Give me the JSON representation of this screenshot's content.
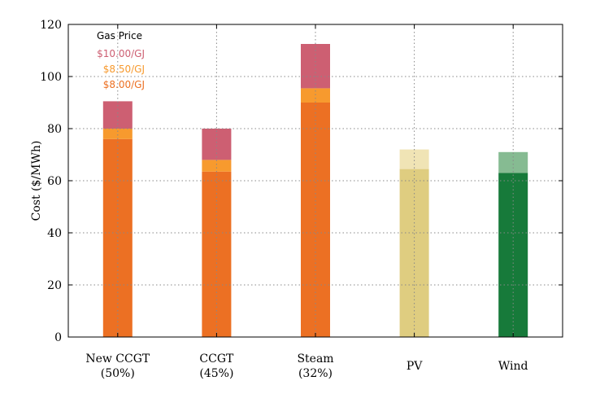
{
  "chart_data": {
    "type": "bar",
    "stacked": true,
    "ylabel": "Cost ($/MWh)",
    "ylim": [
      0,
      120
    ],
    "yticks": [
      0,
      20,
      40,
      60,
      80,
      100,
      120
    ],
    "grid": true,
    "categories": [
      {
        "line1": "New CCGT",
        "line2": "(50%)"
      },
      {
        "line1": "CCGT",
        "line2": "(45%)"
      },
      {
        "line1": "Steam",
        "line2": "(32%)"
      },
      {
        "line1": "PV",
        "line2": ""
      },
      {
        "line1": "Wind",
        "line2": ""
      }
    ],
    "bars": [
      {
        "segments": [
          {
            "value": 76,
            "color": "#ec7023"
          },
          {
            "value": 4,
            "color": "#f79a2e"
          },
          {
            "value": 10.5,
            "color": "#cd5f72"
          }
        ]
      },
      {
        "segments": [
          {
            "value": 63.5,
            "color": "#ec7023"
          },
          {
            "value": 4.5,
            "color": "#f79a2e"
          },
          {
            "value": 12,
            "color": "#cd5f72"
          }
        ]
      },
      {
        "segments": [
          {
            "value": 90,
            "color": "#ec7023"
          },
          {
            "value": 5.5,
            "color": "#f79a2e"
          },
          {
            "value": 17,
            "color": "#cd5f72"
          }
        ]
      },
      {
        "segments": [
          {
            "value": 64.5,
            "color": "#dfcd80"
          },
          {
            "value": 7.5,
            "color": "#f0e4b5"
          }
        ]
      },
      {
        "segments": [
          {
            "value": 63,
            "color": "#177a3a"
          },
          {
            "value": 8,
            "color": "#86bb92"
          }
        ]
      }
    ],
    "legend": {
      "title": "Gas Price",
      "position": "top-left",
      "entries": [
        {
          "label": "$10.00/GJ",
          "color": "#cd5f72"
        },
        {
          "label": "$8.50/GJ",
          "color": "#f79a2e"
        },
        {
          "label": "$8.00/GJ",
          "color": "#ec7023"
        }
      ]
    }
  }
}
